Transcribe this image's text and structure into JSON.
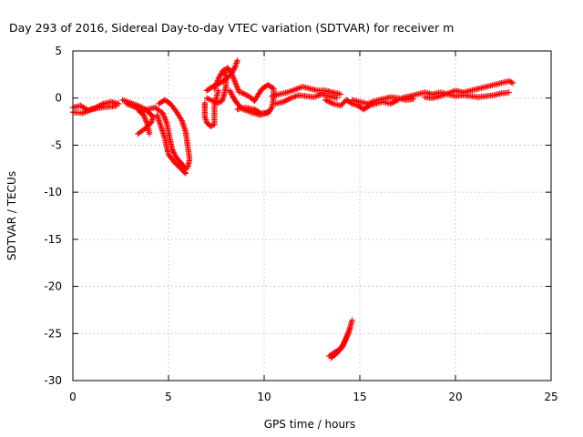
{
  "chart_data": {
    "type": "scatter",
    "title": "Day 293 of 2016, Sidereal Day-to-day VTEC variation (SDTVAR) for receiver m",
    "xlabel": "GPS time / hours",
    "ylabel": "SDTVAR / TECUs",
    "xlim": [
      0,
      25
    ],
    "ylim": [
      -30,
      5
    ],
    "xticks": [
      0,
      5,
      10,
      15,
      20,
      25
    ],
    "yticks": [
      5,
      0,
      -5,
      -10,
      -15,
      -20,
      -25,
      -30
    ],
    "grid": true,
    "marker": "plus",
    "color": "#ff0000",
    "series": [
      {
        "name": "SDTVAR",
        "tracks": [
          [
            [
              0.0,
              -1.0
            ],
            [
              0.4,
              -0.8
            ],
            [
              0.8,
              -1.3
            ],
            [
              1.2,
              -1.0
            ],
            [
              1.6,
              -0.6
            ],
            [
              2.0,
              -0.4
            ],
            [
              2.4,
              -0.6
            ]
          ],
          [
            [
              0.0,
              -1.5
            ],
            [
              0.5,
              -1.6
            ],
            [
              1.0,
              -1.2
            ],
            [
              1.5,
              -1.0
            ],
            [
              2.0,
              -0.9
            ],
            [
              2.3,
              -0.8
            ]
          ],
          [
            [
              2.6,
              -0.2
            ],
            [
              3.0,
              -0.5
            ],
            [
              3.4,
              -0.8
            ],
            [
              3.8,
              -1.2
            ],
            [
              4.0,
              -1.6
            ],
            [
              4.2,
              -2.0
            ],
            [
              4.1,
              -2.6
            ],
            [
              3.8,
              -3.2
            ],
            [
              3.4,
              -3.8
            ]
          ],
          [
            [
              2.8,
              -0.6
            ],
            [
              3.3,
              -1.0
            ],
            [
              3.7,
              -1.8
            ],
            [
              3.9,
              -2.8
            ],
            [
              4.0,
              -3.8
            ]
          ],
          [
            [
              3.5,
              -1.5
            ],
            [
              3.9,
              -1.2
            ],
            [
              4.3,
              -1.0
            ],
            [
              4.7,
              -1.6
            ],
            [
              4.9,
              -2.6
            ],
            [
              5.0,
              -3.6
            ],
            [
              5.1,
              -4.6
            ],
            [
              5.2,
              -5.5
            ],
            [
              5.4,
              -6.3
            ],
            [
              5.7,
              -7.0
            ],
            [
              5.9,
              -7.6
            ]
          ],
          [
            [
              4.5,
              -0.6
            ],
            [
              4.8,
              -0.2
            ],
            [
              5.1,
              -0.6
            ],
            [
              5.4,
              -1.4
            ],
            [
              5.7,
              -2.4
            ],
            [
              5.9,
              -3.6
            ],
            [
              6.0,
              -5.0
            ],
            [
              6.1,
              -6.5
            ],
            [
              6.0,
              -7.4
            ]
          ],
          [
            [
              4.4,
              -1.8
            ],
            [
              4.6,
              -3.0
            ],
            [
              4.8,
              -4.2
            ],
            [
              4.9,
              -5.2
            ],
            [
              5.0,
              -6.0
            ],
            [
              5.3,
              -6.8
            ],
            [
              5.7,
              -7.6
            ],
            [
              5.9,
              -8.0
            ]
          ],
          [
            [
              6.9,
              -0.5
            ],
            [
              6.9,
              -1.2
            ],
            [
              6.9,
              -2.0
            ],
            [
              7.0,
              -2.6
            ],
            [
              7.2,
              -3.0
            ],
            [
              7.4,
              -2.8
            ],
            [
              7.4,
              -1.8
            ],
            [
              7.4,
              -0.8
            ],
            [
              7.5,
              0.0
            ],
            [
              7.6,
              0.8
            ]
          ],
          [
            [
              7.0,
              0.8
            ],
            [
              7.3,
              1.2
            ],
            [
              7.7,
              1.6
            ],
            [
              8.0,
              2.0
            ],
            [
              8.3,
              2.6
            ],
            [
              8.5,
              3.4
            ],
            [
              8.6,
              4.0
            ]
          ],
          [
            [
              7.0,
              0.0
            ],
            [
              7.3,
              -0.3
            ],
            [
              7.6,
              -0.5
            ],
            [
              7.8,
              -0.3
            ],
            [
              7.9,
              0.3
            ],
            [
              8.0,
              1.2
            ],
            [
              8.0,
              2.3
            ],
            [
              7.9,
              3.0
            ]
          ],
          [
            [
              7.4,
              1.0
            ],
            [
              7.6,
              2.0
            ],
            [
              7.8,
              2.8
            ],
            [
              8.1,
              3.2
            ],
            [
              8.3,
              2.6
            ],
            [
              8.5,
              1.6
            ],
            [
              8.7,
              0.6
            ]
          ],
          [
            [
              8.8,
              0.6
            ],
            [
              9.2,
              0.2
            ],
            [
              9.5,
              -0.3
            ],
            [
              9.7,
              0.4
            ],
            [
              9.9,
              1.0
            ],
            [
              10.2,
              1.4
            ],
            [
              10.5,
              1.0
            ],
            [
              10.5,
              0.0
            ],
            [
              10.4,
              -1.0
            ],
            [
              10.2,
              -1.6
            ],
            [
              9.8,
              -1.6
            ],
            [
              9.5,
              -1.2
            ],
            [
              9.0,
              -1.0
            ],
            [
              8.6,
              -1.2
            ]
          ],
          [
            [
              8.2,
              0.8
            ],
            [
              8.4,
              0.0
            ],
            [
              8.6,
              -0.6
            ],
            [
              8.9,
              -1.2
            ],
            [
              9.3,
              -1.5
            ],
            [
              9.8,
              -1.8
            ],
            [
              10.3,
              -1.4
            ]
          ],
          [
            [
              10.4,
              0.2
            ],
            [
              10.8,
              0.4
            ],
            [
              11.2,
              0.6
            ],
            [
              11.6,
              0.9
            ],
            [
              12.0,
              1.2
            ],
            [
              12.4,
              1.0
            ],
            [
              12.8,
              0.8
            ],
            [
              13.2,
              0.8
            ],
            [
              13.6,
              0.6
            ],
            [
              14.0,
              0.4
            ]
          ],
          [
            [
              10.6,
              -0.6
            ],
            [
              11.0,
              -0.4
            ],
            [
              11.4,
              0.0
            ],
            [
              11.8,
              0.3
            ],
            [
              12.2,
              0.2
            ],
            [
              12.6,
              0.1
            ],
            [
              13.0,
              0.4
            ],
            [
              13.4,
              0.2
            ],
            [
              13.8,
              0.0
            ]
          ],
          [
            [
              13.2,
              -0.2
            ],
            [
              13.6,
              -0.6
            ],
            [
              14.0,
              -0.8
            ],
            [
              14.3,
              -0.2
            ],
            [
              14.6,
              -0.6
            ],
            [
              14.9,
              -0.8
            ],
            [
              15.2,
              -1.2
            ],
            [
              15.5,
              -0.8
            ],
            [
              15.8,
              -0.6
            ],
            [
              16.2,
              -0.4
            ],
            [
              16.6,
              -0.6
            ],
            [
              17.0,
              -0.2
            ]
          ],
          [
            [
              14.6,
              -0.2
            ],
            [
              15.0,
              -0.4
            ],
            [
              15.4,
              -0.6
            ],
            [
              15.8,
              -0.3
            ],
            [
              16.2,
              -0.1
            ],
            [
              16.6,
              0.1
            ],
            [
              17.0,
              0.0
            ],
            [
              17.4,
              -0.2
            ],
            [
              17.8,
              -0.1
            ]
          ],
          [
            [
              17.2,
              0.0
            ],
            [
              17.6,
              0.2
            ],
            [
              18.0,
              0.4
            ],
            [
              18.4,
              0.6
            ],
            [
              18.8,
              0.4
            ],
            [
              19.2,
              0.6
            ],
            [
              19.6,
              0.4
            ],
            [
              20.0,
              0.2
            ],
            [
              20.4,
              0.3
            ],
            [
              20.8,
              0.2
            ],
            [
              21.2,
              0.1
            ],
            [
              21.6,
              0.2
            ],
            [
              22.0,
              0.3
            ],
            [
              22.4,
              0.5
            ],
            [
              22.8,
              0.6
            ]
          ],
          [
            [
              18.4,
              0.1
            ],
            [
              18.8,
              0.0
            ],
            [
              19.2,
              0.2
            ],
            [
              19.6,
              0.5
            ],
            [
              20.0,
              0.8
            ],
            [
              20.4,
              0.6
            ],
            [
              20.8,
              0.8
            ],
            [
              21.2,
              1.0
            ],
            [
              21.6,
              1.2
            ],
            [
              22.0,
              1.4
            ],
            [
              22.4,
              1.6
            ],
            [
              22.8,
              1.8
            ],
            [
              23.0,
              1.6
            ]
          ],
          [
            [
              13.4,
              -27.4
            ],
            [
              13.7,
              -27.0
            ],
            [
              14.0,
              -26.6
            ],
            [
              14.2,
              -25.9
            ],
            [
              14.4,
              -25.0
            ],
            [
              14.6,
              -23.6
            ]
          ],
          [
            [
              13.5,
              -27.6
            ],
            [
              13.8,
              -27.1
            ],
            [
              14.1,
              -26.4
            ],
            [
              14.3,
              -25.4
            ],
            [
              14.5,
              -24.4
            ]
          ]
        ]
      }
    ]
  }
}
